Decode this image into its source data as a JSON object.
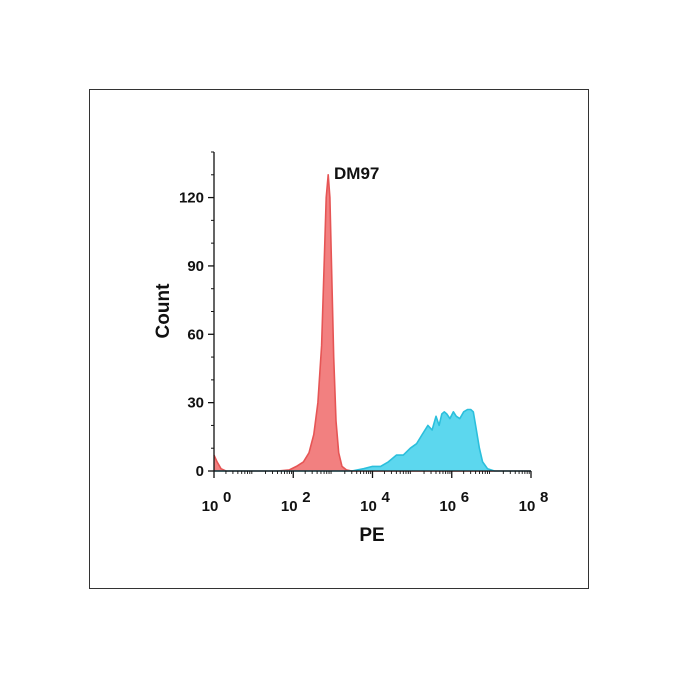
{
  "chart_data": {
    "type": "area",
    "title": "DM97",
    "xlabel": "PE",
    "ylabel": "Count",
    "x_scale": "log10",
    "xlim": [
      1,
      100000000
    ],
    "ylim": [
      0,
      140
    ],
    "x_ticks": [
      {
        "value": 1,
        "base": "10",
        "exp": "0"
      },
      {
        "value": 100,
        "base": "10",
        "exp": "2"
      },
      {
        "value": 10000,
        "base": "10",
        "exp": "4"
      },
      {
        "value": 1000000,
        "base": "10",
        "exp": "6"
      },
      {
        "value": 100000000,
        "base": "10",
        "exp": "8"
      }
    ],
    "y_ticks": [
      {
        "value": 0,
        "label": "0"
      },
      {
        "value": 30,
        "label": "30"
      },
      {
        "value": 60,
        "label": "60"
      },
      {
        "value": 90,
        "label": "90"
      },
      {
        "value": 120,
        "label": "120"
      }
    ],
    "grid": false,
    "series": [
      {
        "fill": "#f28080",
        "stroke": "#e65555",
        "points": [
          [
            1,
            7
          ],
          [
            1.2,
            4
          ],
          [
            1.5,
            1
          ],
          [
            2,
            0
          ],
          [
            10,
            0
          ],
          [
            40,
            0
          ],
          [
            80,
            0.5
          ],
          [
            120,
            2
          ],
          [
            180,
            4
          ],
          [
            250,
            8
          ],
          [
            330,
            16
          ],
          [
            420,
            30
          ],
          [
            520,
            55
          ],
          [
            600,
            90
          ],
          [
            680,
            120
          ],
          [
            760,
            130
          ],
          [
            840,
            120
          ],
          [
            940,
            85
          ],
          [
            1050,
            50
          ],
          [
            1200,
            22
          ],
          [
            1400,
            8
          ],
          [
            1700,
            2
          ],
          [
            2200,
            0.5
          ],
          [
            3000,
            0
          ],
          [
            100000000,
            0
          ]
        ]
      },
      {
        "fill": "#5cd7ee",
        "stroke": "#2bbfdc",
        "points": [
          [
            1,
            0
          ],
          [
            3000,
            0
          ],
          [
            6000,
            1
          ],
          [
            10000,
            2
          ],
          [
            16000,
            2
          ],
          [
            25000,
            4
          ],
          [
            40000,
            7
          ],
          [
            60000,
            7
          ],
          [
            90000,
            10
          ],
          [
            130000,
            12
          ],
          [
            180000,
            16
          ],
          [
            250000,
            20
          ],
          [
            320000,
            18
          ],
          [
            400000,
            24
          ],
          [
            480000,
            20
          ],
          [
            560000,
            25
          ],
          [
            650000,
            26
          ],
          [
            750000,
            25
          ],
          [
            900000,
            23
          ],
          [
            1100000,
            26
          ],
          [
            1300000,
            24
          ],
          [
            1600000,
            23
          ],
          [
            2000000,
            26
          ],
          [
            2500000,
            27
          ],
          [
            3000000,
            27
          ],
          [
            3500000,
            26
          ],
          [
            4000000,
            20
          ],
          [
            5000000,
            10
          ],
          [
            6000000,
            4
          ],
          [
            8000000,
            1
          ],
          [
            12000000,
            0
          ],
          [
            100000000,
            0
          ]
        ]
      }
    ]
  }
}
